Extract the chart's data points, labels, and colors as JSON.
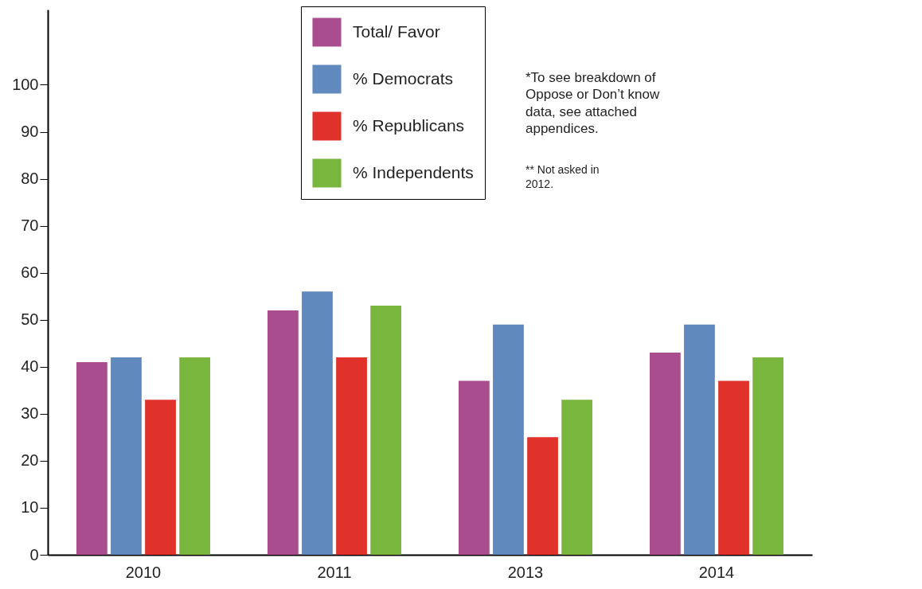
{
  "chart_data": {
    "type": "bar",
    "categories": [
      "2010",
      "2011",
      "2013",
      "2014"
    ],
    "series": [
      {
        "name": "Total/ Favor",
        "color": "#a94d8e",
        "values": [
          41,
          52,
          37,
          43
        ]
      },
      {
        "name": "% Democrats",
        "color": "#6089bd",
        "values": [
          42,
          56,
          49,
          49
        ]
      },
      {
        "name": "% Republicans",
        "color": "#e0312a",
        "values": [
          33,
          42,
          25,
          37
        ]
      },
      {
        "name": "% Independents",
        "color": "#79b63d",
        "values": [
          42,
          53,
          33,
          42
        ]
      }
    ],
    "ylim": [
      0,
      116
    ],
    "yticks": [
      0,
      10,
      20,
      30,
      40,
      50,
      60,
      70,
      80,
      90,
      100
    ],
    "grid": false,
    "legend": "top",
    "annotations": [
      "*To see breakdown of Oppose or Don’t know data, see attached appendices.",
      "** Not asked in 2012."
    ]
  }
}
